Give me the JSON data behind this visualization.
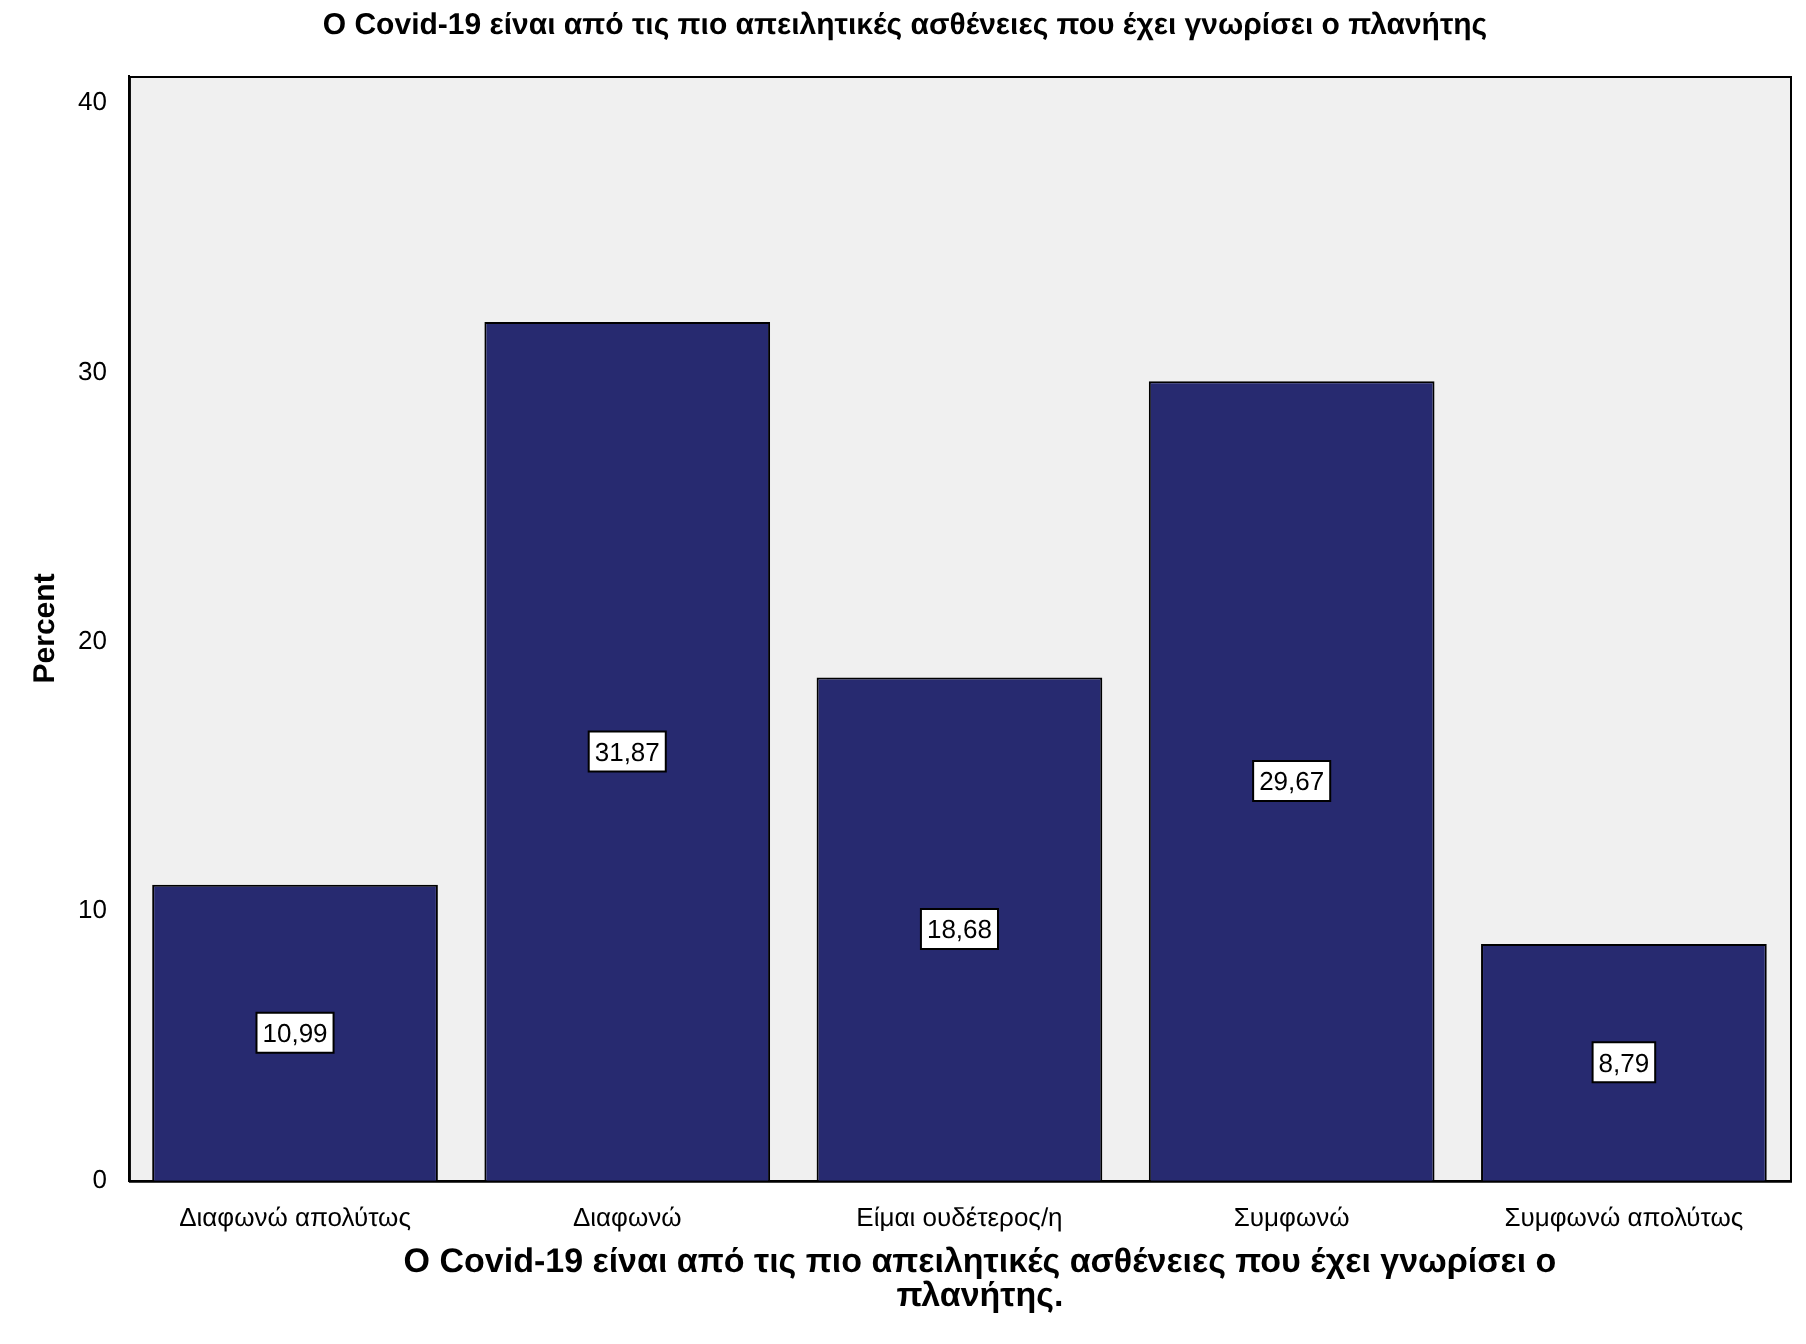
{
  "chart_data": {
    "type": "bar",
    "title": "Ο Covid-19 είναι από τις πιο απειλητικές ασθένειες που έχει γνωρίσει ο πλανήτης",
    "xlabel": "Ο Covid-19 είναι από τις πιο απειλητικές ασθένειες που έχει γνωρίσει ο πλανήτης.",
    "ylabel": "Percent",
    "categories": [
      "Διαφωνώ απολύτως",
      "Διαφωνώ",
      "Είμαι ουδέτερος/η",
      "Συμφωνώ",
      "Συμφωνώ απολύτως"
    ],
    "values": [
      10.99,
      31.87,
      18.68,
      29.67,
      8.79
    ],
    "value_labels": [
      "10,99",
      "31,87",
      "18,68",
      "29,67",
      "8,79"
    ],
    "color": "#272a70",
    "ylim": [
      0,
      41
    ],
    "yticks": [
      0,
      10,
      20,
      30,
      40
    ],
    "grid": false
  }
}
